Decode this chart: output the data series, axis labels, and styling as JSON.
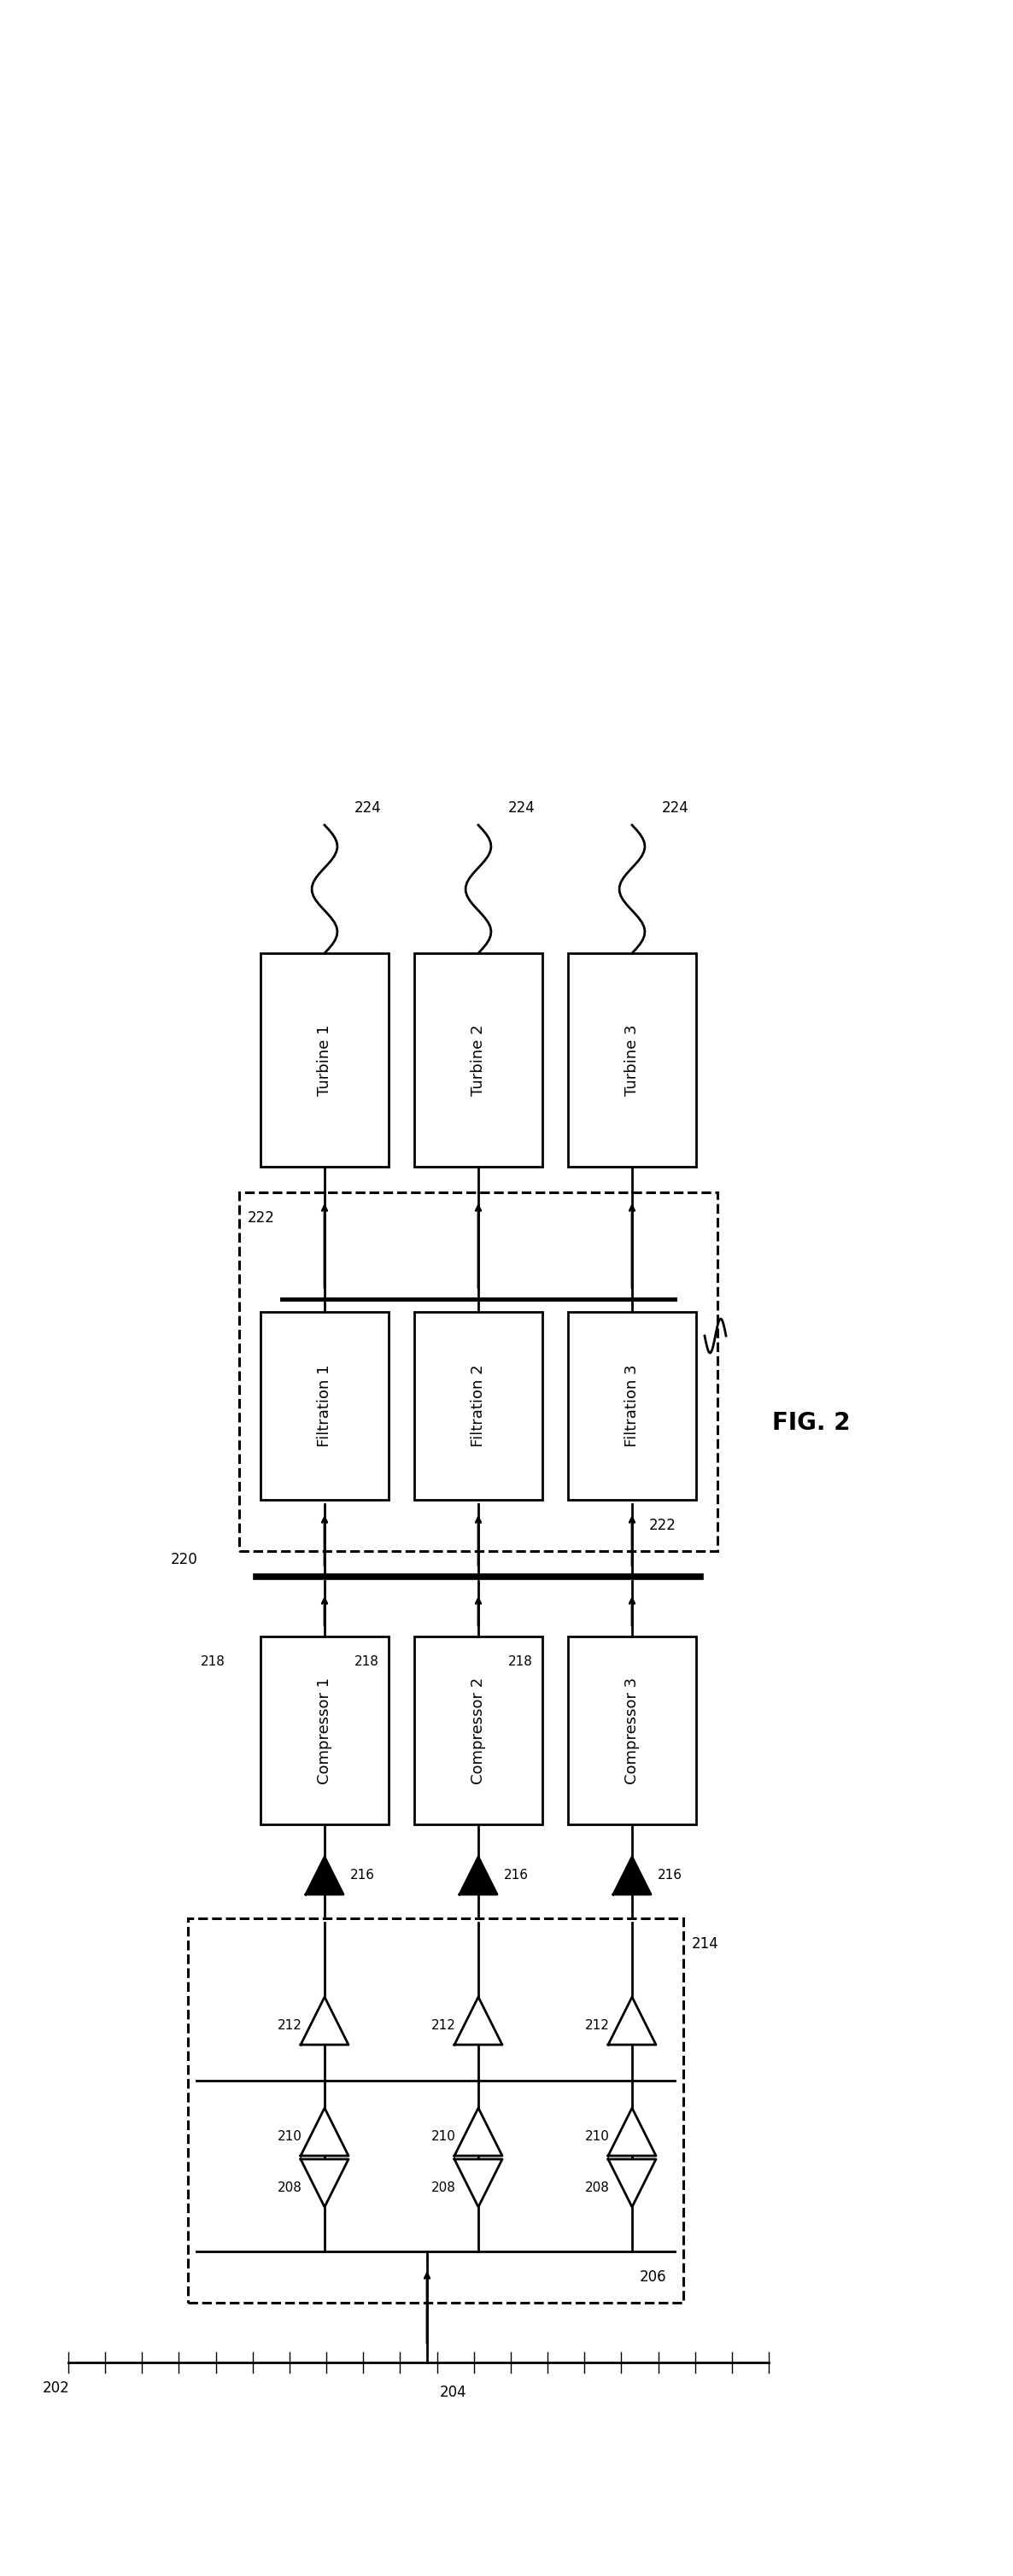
{
  "title": "FIG. 2",
  "bg_color": "#ffffff",
  "line_color": "#000000",
  "turbines": [
    "Turbine 1",
    "Turbine 2",
    "Turbine 3"
  ],
  "filtrations": [
    "Filtration 1",
    "Filtration 2",
    "Filtration 3"
  ],
  "compressors": [
    "Compressor 1",
    "Compressor 2",
    "Compressor 3"
  ],
  "label_202": "202",
  "label_204": "204",
  "label_206": "206",
  "label_208": "208",
  "label_210": "210",
  "label_212": "212",
  "label_214": "214",
  "label_216": "216",
  "label_218": "218",
  "label_220": "220",
  "label_222": "222",
  "label_224": "224"
}
